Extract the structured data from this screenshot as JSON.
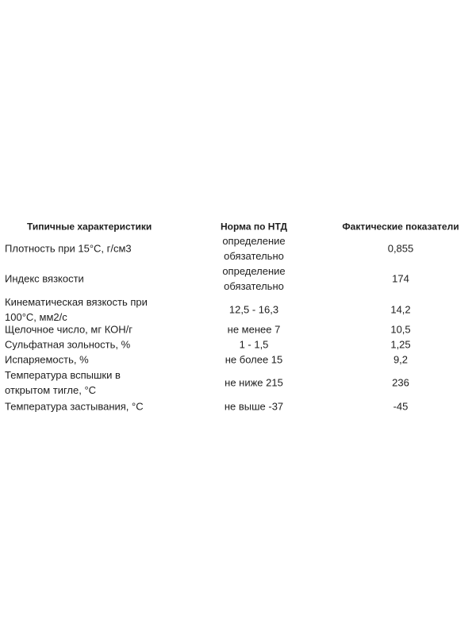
{
  "table": {
    "headers": [
      "Типичные характеристики",
      "Норма по НТД",
      "Фактические показатели"
    ],
    "rows": [
      {
        "property": "Плотность при 15°C, г/см3",
        "norm": "определение обязательно",
        "actual": "0,855"
      },
      {
        "property": "Индекс вязкости",
        "norm": "определение обязательно",
        "actual": "174"
      },
      {
        "property": "Кинематическая вязкость при 100°C, мм2/с",
        "norm": "12,5 - 16,3",
        "actual": "14,2"
      },
      {
        "property": "Щелочное число, мг КОН/г",
        "norm": "не менее 7",
        "actual": "10,5"
      },
      {
        "property": "Сульфатная зольность, %",
        "norm": "1 - 1,5",
        "actual": "1,25"
      },
      {
        "property": "Испаряемость, %",
        "norm": "не более 15",
        "actual": "9,2"
      },
      {
        "property": "Температура вспышки в открытом тигле, °C",
        "norm": "не ниже 215",
        "actual": "236"
      },
      {
        "property": "Температура застывания, °C",
        "norm": "не выше -37",
        "actual": "-45"
      }
    ]
  }
}
